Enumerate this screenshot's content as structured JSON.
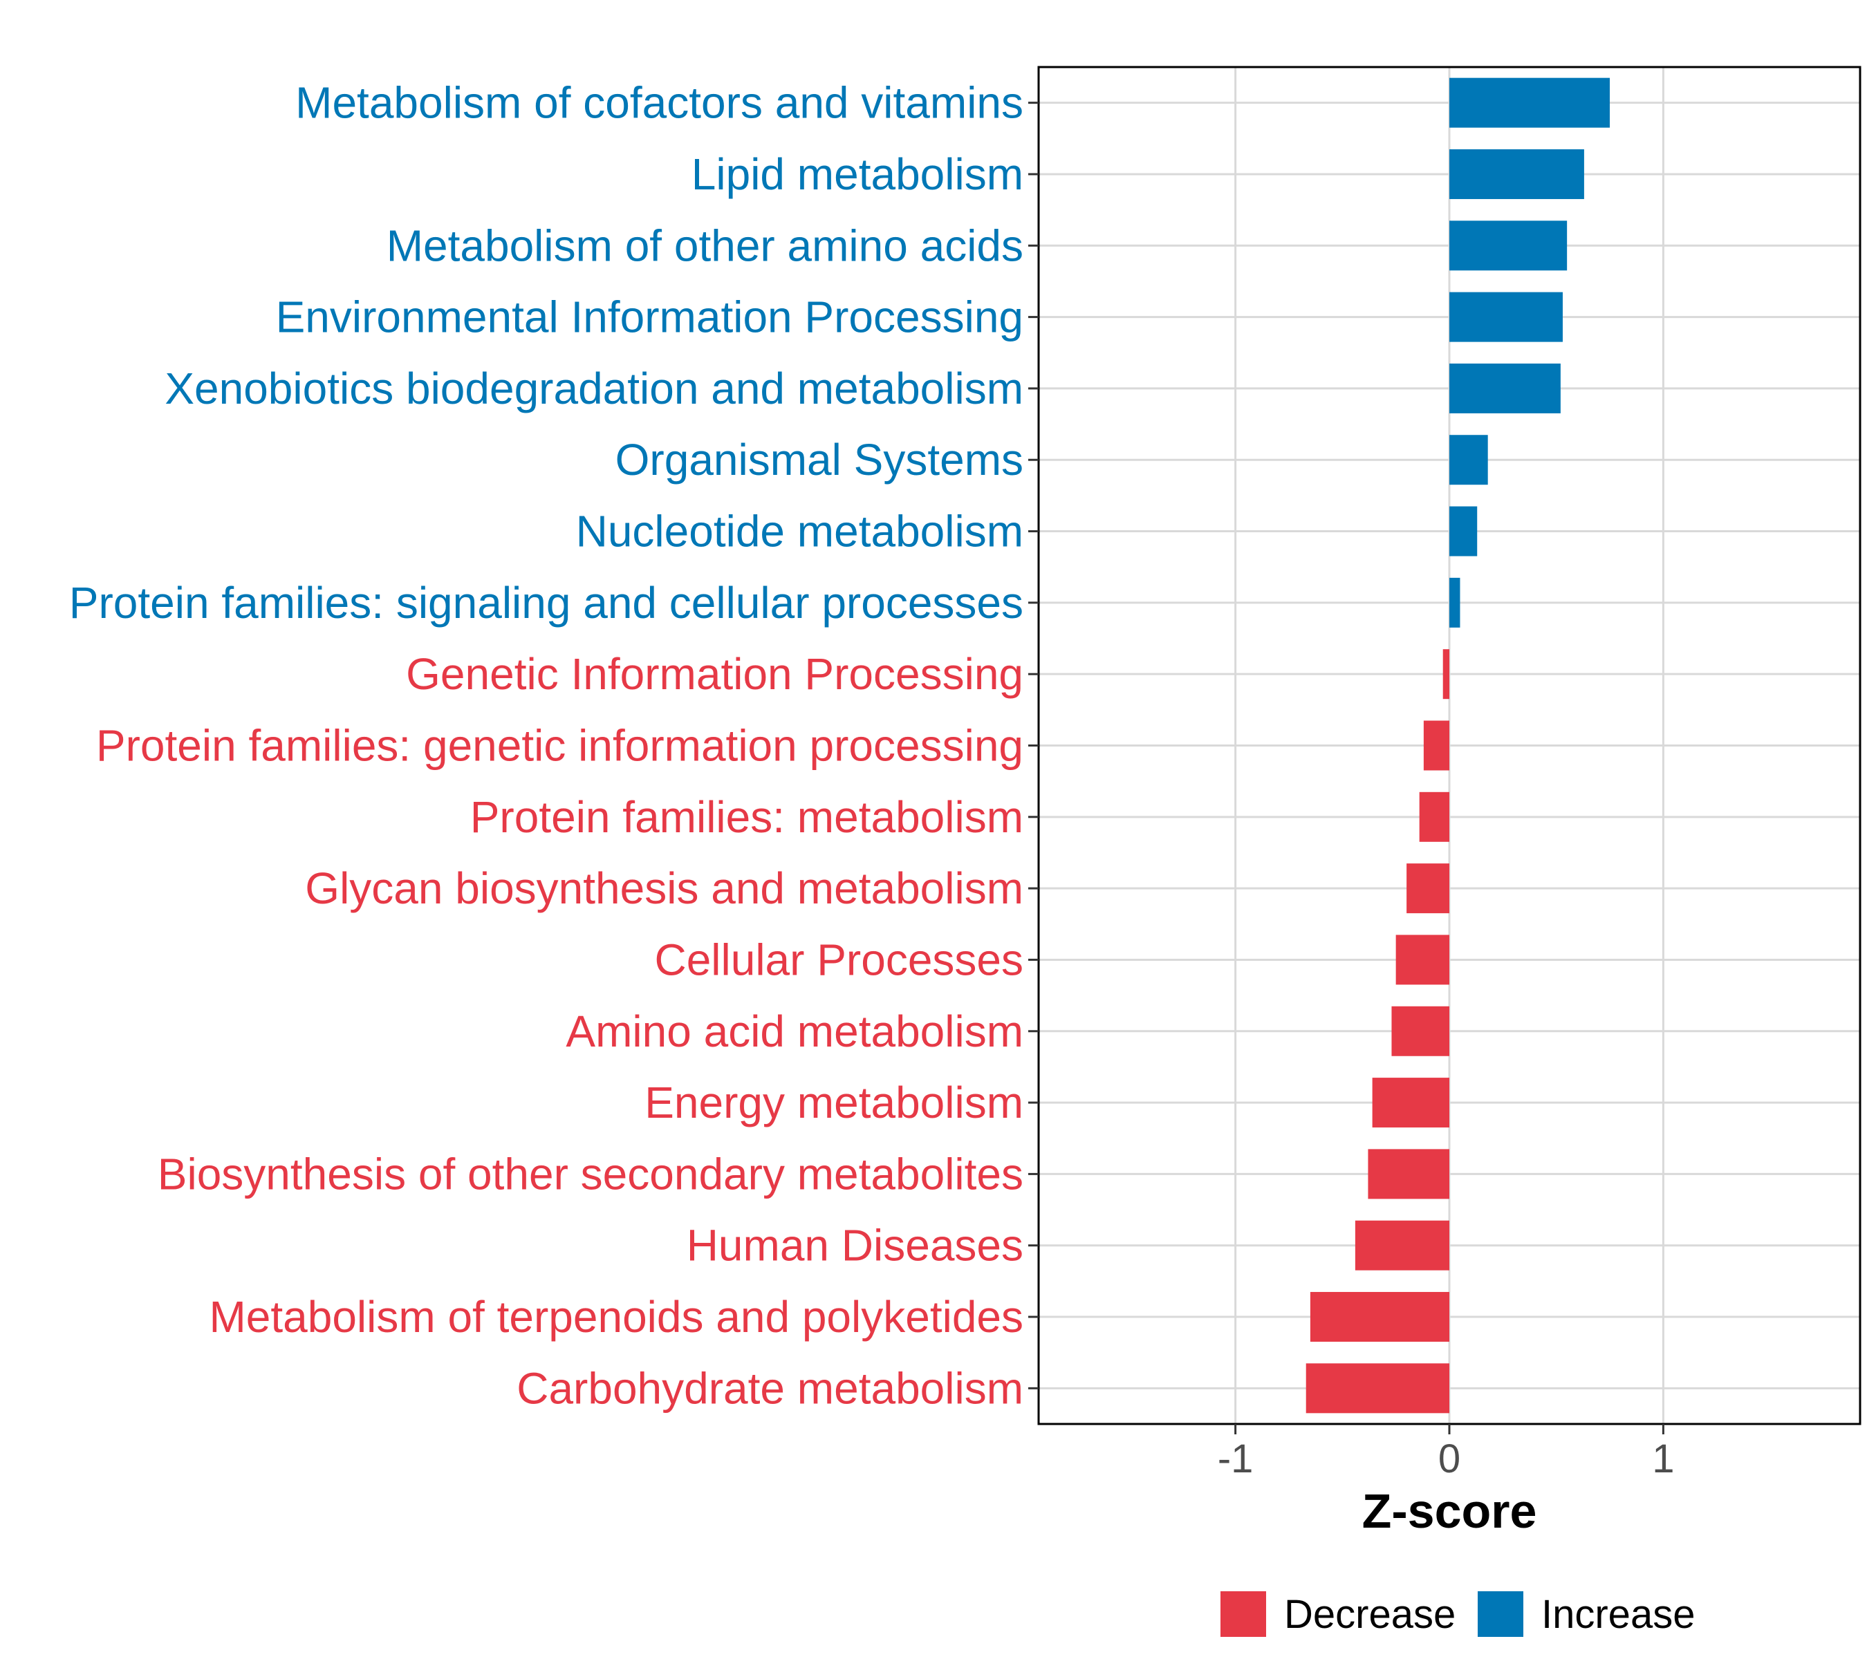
{
  "chart_data": {
    "type": "bar",
    "orientation": "horizontal",
    "categories": [
      "Metabolism of cofactors and vitamins",
      "Lipid metabolism",
      "Metabolism of other amino acids",
      "Environmental Information Processing",
      "Xenobiotics biodegradation and metabolism",
      "Organismal Systems",
      "Nucleotide metabolism",
      "Protein families: signaling and cellular processes",
      "Genetic Information Processing",
      "Protein families: genetic information processing",
      "Protein families: metabolism",
      "Glycan biosynthesis and metabolism",
      "Cellular Processes",
      "Amino acid metabolism",
      "Energy metabolism",
      "Biosynthesis of other secondary metabolites",
      "Human Diseases",
      "Metabolism of terpenoids and polyketides",
      "Carbohydrate metabolism"
    ],
    "values": [
      0.75,
      0.63,
      0.55,
      0.53,
      0.52,
      0.18,
      0.13,
      0.05,
      -0.03,
      -0.12,
      -0.14,
      -0.2,
      -0.25,
      -0.27,
      -0.36,
      -0.38,
      -0.44,
      -0.65,
      -0.67
    ],
    "groups": [
      "Increase",
      "Increase",
      "Increase",
      "Increase",
      "Increase",
      "Increase",
      "Increase",
      "Increase",
      "Decrease",
      "Decrease",
      "Decrease",
      "Decrease",
      "Decrease",
      "Decrease",
      "Decrease",
      "Decrease",
      "Decrease",
      "Decrease",
      "Decrease"
    ],
    "xlabel": "Z-score",
    "ylabel": "",
    "xlim": [
      -1.92,
      1.92
    ],
    "xticks": [
      -1,
      0,
      1
    ],
    "xtick_labels": [
      "-1",
      "0",
      "1"
    ],
    "grid": true,
    "legend": {
      "position": "bottom",
      "entries": [
        {
          "name": "Decrease",
          "color": "#e63946"
        },
        {
          "name": "Increase",
          "color": "#0077b6"
        }
      ]
    },
    "colors": {
      "Increase": "#0077b6",
      "Decrease": "#e63946",
      "grid": "#d9d9d9",
      "frame": "#000000"
    }
  }
}
